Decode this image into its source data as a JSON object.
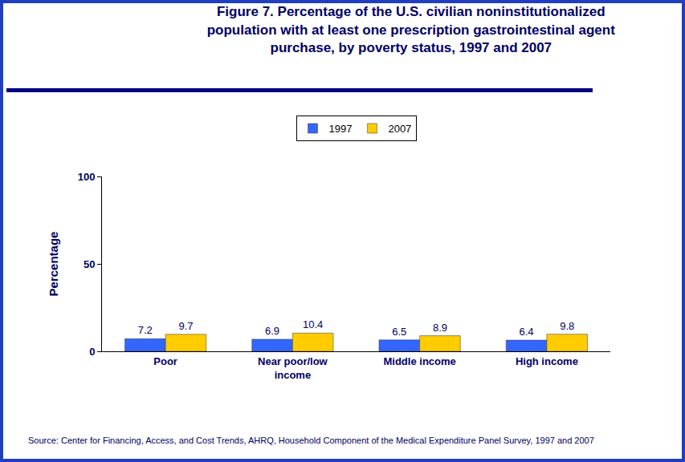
{
  "chart_data": {
    "type": "bar",
    "title": "Figure 7. Percentage of the U.S. civilian noninstitutionalized population with at least one prescription gastrointestinal agent purchase, by poverty status, 1997 and 2007",
    "y_label": "Percentage",
    "categories": [
      "Poor",
      "Near poor/low income",
      "Middle income",
      "High income"
    ],
    "series": [
      {
        "name": "1997",
        "color": "#3366ff",
        "values": [
          7.2,
          6.9,
          6.5,
          6.4
        ]
      },
      {
        "name": "2007",
        "color": "#ffcc00",
        "values": [
          9.7,
          10.4,
          8.9,
          9.8
        ]
      }
    ],
    "ylim": [
      0,
      100
    ],
    "yticks": [
      0,
      50,
      100
    ],
    "grid": false,
    "legend": "top",
    "data_labels": true,
    "annotations": [
      "Source: Center for Financing, Access, and Cost Trends, AHRQ, Household Component of the Medical Expenditure Panel Survey, 1997 and 2007"
    ]
  }
}
